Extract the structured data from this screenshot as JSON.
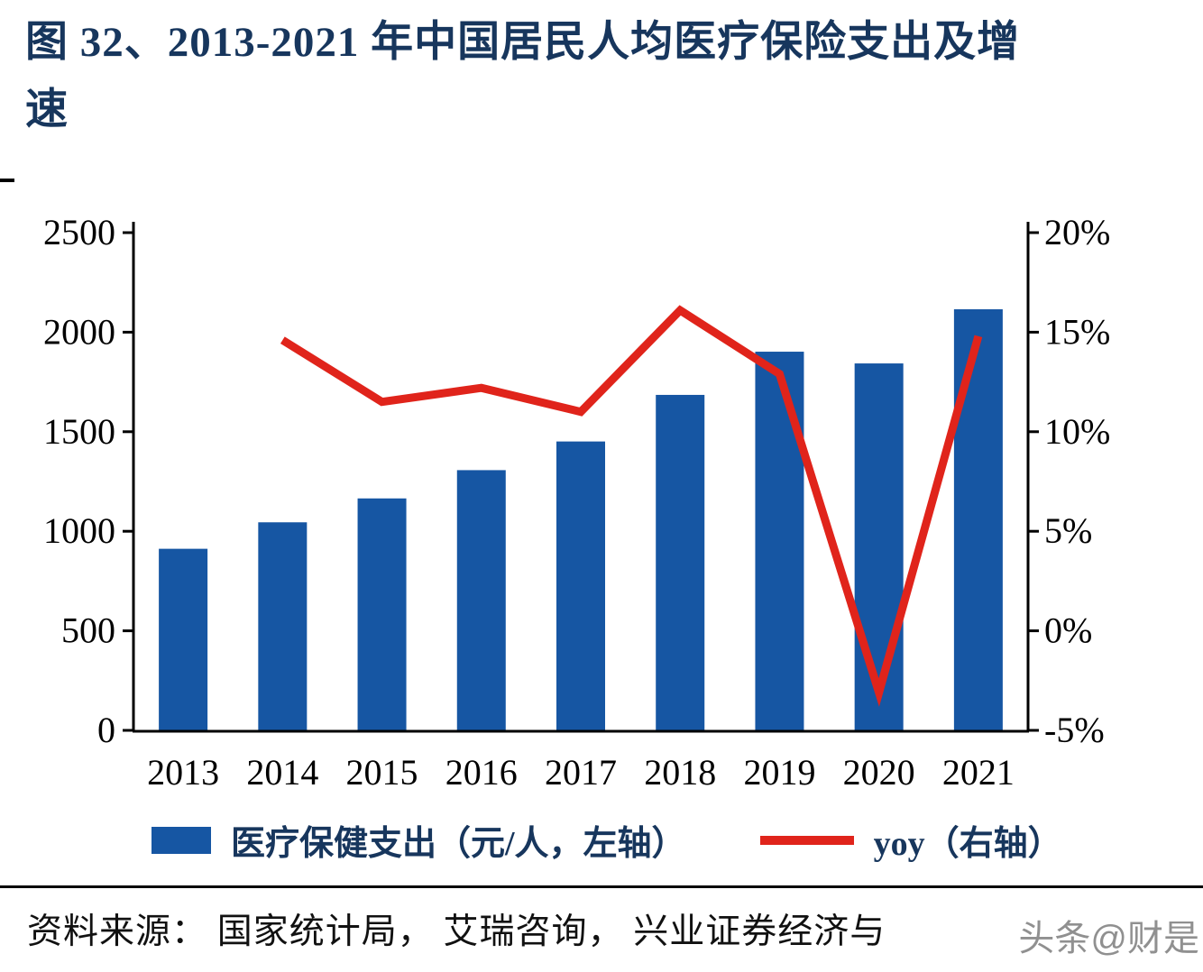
{
  "title": {
    "line1": "图 32、2013-2021 年中国居民人均医疗保险支出及增",
    "line2": "速",
    "full": "图 32、2013-2021 年中国居民人均医疗保险支出及增速"
  },
  "legend": {
    "bar_label": "医疗保健支出（元/人，左轴）",
    "line_label": "yoy（右轴）"
  },
  "source": "资料来源：  国家统计局，  艾瑞咨询，  兴业证券经济与",
  "watermark": "头条@财是",
  "chart_data": {
    "type": "bar+line",
    "title": "图 32、2013-2021 年中国居民人均医疗保险支出及增速",
    "categories": [
      "2013",
      "2014",
      "2015",
      "2016",
      "2017",
      "2018",
      "2019",
      "2020",
      "2021"
    ],
    "series": [
      {
        "name": "医疗保健支出（元/人，左轴）",
        "type": "bar",
        "axis": "left",
        "values": [
          912,
          1045,
          1165,
          1307,
          1451,
          1685,
          1902,
          1843,
          2115
        ]
      },
      {
        "name": "yoy（右轴）",
        "type": "line",
        "axis": "right",
        "values": [
          null,
          14.6,
          11.5,
          12.2,
          11.0,
          16.1,
          12.9,
          -3.1,
          14.8
        ]
      }
    ],
    "left_axis": {
      "min": 0,
      "max": 2500,
      "step": 500,
      "ticks": [
        "0",
        "500",
        "1000",
        "1500",
        "2000",
        "2500"
      ]
    },
    "right_axis": {
      "min": -5,
      "max": 20,
      "step": 5,
      "ticks": [
        "-5%",
        "0%",
        "5%",
        "10%",
        "15%",
        "20%"
      ],
      "unit": "%"
    },
    "colors": {
      "bar": "#1656A3",
      "line": "#E0241B",
      "title": "#17365D"
    },
    "grid": false,
    "legend_position": "bottom"
  }
}
